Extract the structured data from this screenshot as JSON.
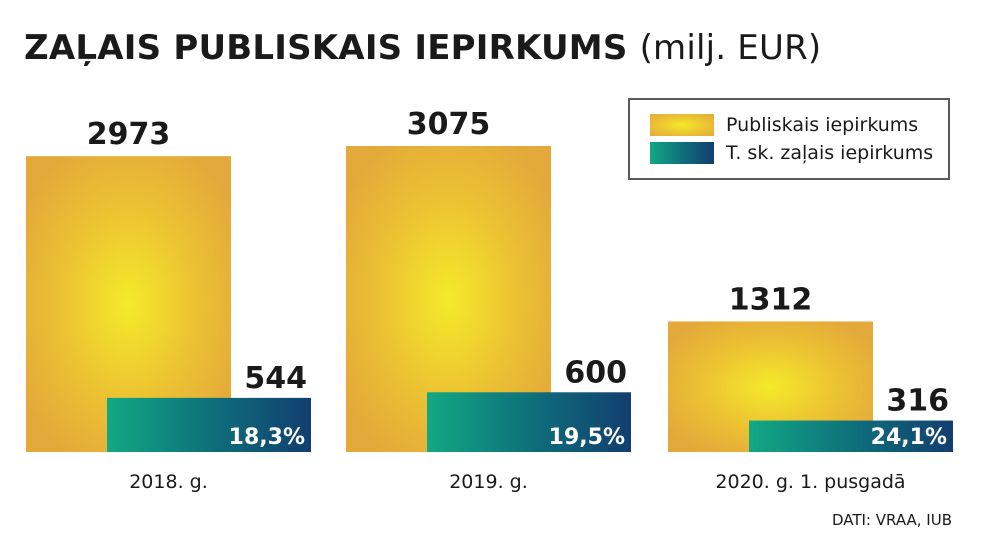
{
  "title": {
    "main": "ZAĻAIS PUBLISKAIS IEPIRKUMS",
    "unit": "(milj. EUR)"
  },
  "source": "DATI: VRAA, IUB",
  "colors": {
    "public": "#ecc233",
    "green": "#0e6b7a"
  },
  "chart_data": {
    "type": "bar",
    "title": "ZAĻAIS PUBLISKAIS IEPIRKUMS (milj. EUR)",
    "categories": [
      "2018. g.",
      "2019. g.",
      "2020. g. 1. pusgadā"
    ],
    "series": [
      {
        "name": "Publiskais iepirkums",
        "values": [
          2973,
          3075,
          1312
        ]
      },
      {
        "name": "T. sk. zaļais iepirkums",
        "values": [
          544,
          600,
          316
        ]
      }
    ],
    "share_labels": [
      "18,3%",
      "19,5%",
      "24,1%"
    ],
    "ylim": [
      0,
      3075
    ],
    "grid": false,
    "legend": "top-right"
  }
}
